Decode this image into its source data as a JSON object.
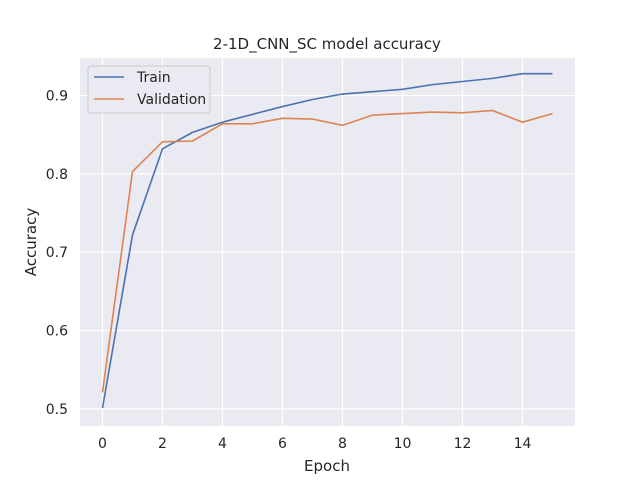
{
  "chart_data": {
    "type": "line",
    "title": "2-1D_CNN_SC model accuracy",
    "xlabel": "Epoch",
    "ylabel": "Accuracy",
    "x": [
      0,
      1,
      2,
      3,
      4,
      5,
      6,
      7,
      8,
      9,
      10,
      11,
      12,
      13,
      14,
      15
    ],
    "xlim": [
      -0.75,
      15.75
    ],
    "ylim": [
      0.478,
      0.948
    ],
    "xticks": [
      0,
      2,
      4,
      6,
      8,
      10,
      12,
      14
    ],
    "yticks": [
      0.5,
      0.6,
      0.7,
      0.8,
      0.9
    ],
    "grid": true,
    "legend_position": "upper-left",
    "background_color": "#eaeaf2",
    "grid_color": "#ffffff",
    "series": [
      {
        "name": "Train",
        "color": "#4c72b0",
        "values": [
          0.501,
          0.722,
          0.832,
          0.853,
          0.866,
          0.876,
          0.886,
          0.895,
          0.902,
          0.905,
          0.908,
          0.914,
          0.918,
          0.922,
          0.928,
          0.928
        ]
      },
      {
        "name": "Validation",
        "color": "#dd8452",
        "values": [
          0.521,
          0.803,
          0.841,
          0.842,
          0.864,
          0.864,
          0.871,
          0.87,
          0.862,
          0.875,
          0.877,
          0.879,
          0.878,
          0.881,
          0.866,
          0.877
        ]
      }
    ]
  }
}
